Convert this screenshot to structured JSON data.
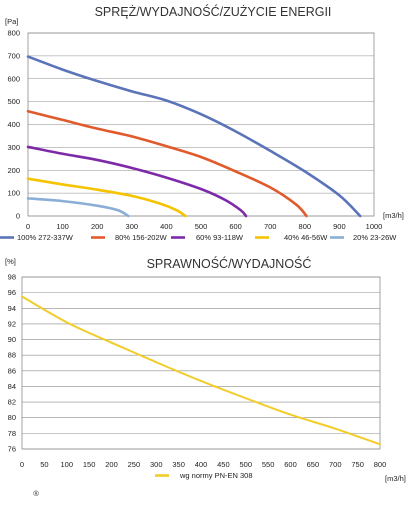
{
  "chart_data": [
    {
      "type": "line",
      "title": "SPRĘŻ/WYDAJNOŚĆ/ZUŻYCIE ENERGII",
      "y_unit": "[Pa]",
      "x_unit": "[m3/h]",
      "xlim": [
        0,
        1000
      ],
      "ylim": [
        0,
        800
      ],
      "x_ticks": [
        "0",
        "100",
        "200",
        "300",
        "400",
        "500",
        "600",
        "700",
        "800",
        "900",
        "1000"
      ],
      "y_ticks": [
        "0",
        "100",
        "200",
        "300",
        "400",
        "500",
        "600",
        "700",
        "800"
      ],
      "grid": true,
      "legend_position": "bottom",
      "series": [
        {
          "name": "100% 272-337W",
          "color": "#5b73b8",
          "points": [
            [
              0,
              697
            ],
            [
              100,
              640
            ],
            [
              200,
              590
            ],
            [
              300,
              545
            ],
            [
              400,
              505
            ],
            [
              500,
              445
            ],
            [
              600,
              370
            ],
            [
              700,
              285
            ],
            [
              800,
              195
            ],
            [
              900,
              90
            ],
            [
              960,
              0
            ]
          ]
        },
        {
          "name": "80% 156-202W",
          "color": "#e05a2b",
          "points": [
            [
              0,
              458
            ],
            [
              100,
              420
            ],
            [
              200,
              382
            ],
            [
              300,
              348
            ],
            [
              400,
              305
            ],
            [
              500,
              258
            ],
            [
              600,
              195
            ],
            [
              700,
              125
            ],
            [
              775,
              50
            ],
            [
              805,
              0
            ]
          ]
        },
        {
          "name": "60% 93-118W",
          "color": "#7d2aa8",
          "points": [
            [
              0,
              302
            ],
            [
              100,
              272
            ],
            [
              200,
              245
            ],
            [
              300,
              210
            ],
            [
              400,
              168
            ],
            [
              500,
              118
            ],
            [
              570,
              70
            ],
            [
              615,
              25
            ],
            [
              630,
              0
            ]
          ]
        },
        {
          "name": "40% 46-56W",
          "color": "#f5c400",
          "points": [
            [
              0,
              163
            ],
            [
              100,
              138
            ],
            [
              200,
              115
            ],
            [
              300,
              88
            ],
            [
              380,
              55
            ],
            [
              430,
              25
            ],
            [
              455,
              0
            ]
          ]
        },
        {
          "name": "20% 23-26W",
          "color": "#8aaed6",
          "points": [
            [
              0,
              77
            ],
            [
              100,
              65
            ],
            [
              200,
              45
            ],
            [
              260,
              25
            ],
            [
              290,
              0
            ]
          ]
        }
      ]
    },
    {
      "type": "line",
      "title": "SPRAWNOŚĆ/WYDAJNOŚĆ",
      "y_unit": "[%]",
      "x_unit": "[m3/h]",
      "xlim": [
        0,
        800
      ],
      "ylim": [
        76,
        98
      ],
      "x_ticks": [
        "0",
        "50",
        "100",
        "150",
        "200",
        "250",
        "300",
        "350",
        "400",
        "450",
        "500",
        "550",
        "600",
        "650",
        "700",
        "750",
        "800"
      ],
      "y_ticks": [
        "76",
        "78",
        "80",
        "82",
        "84",
        "86",
        "88",
        "90",
        "92",
        "94",
        "96",
        "98"
      ],
      "grid": true,
      "legend_position": "bottom",
      "series": [
        {
          "name": "wg normy PN-EN 308",
          "color": "#f2cc2a",
          "points": [
            [
              0,
              95.5
            ],
            [
              100,
              92.2
            ],
            [
              200,
              89.6
            ],
            [
              300,
              87.1
            ],
            [
              400,
              84.7
            ],
            [
              500,
              82.5
            ],
            [
              600,
              80.4
            ],
            [
              700,
              78.6
            ],
            [
              800,
              76.6
            ]
          ]
        }
      ]
    }
  ],
  "footer_mark": "®"
}
